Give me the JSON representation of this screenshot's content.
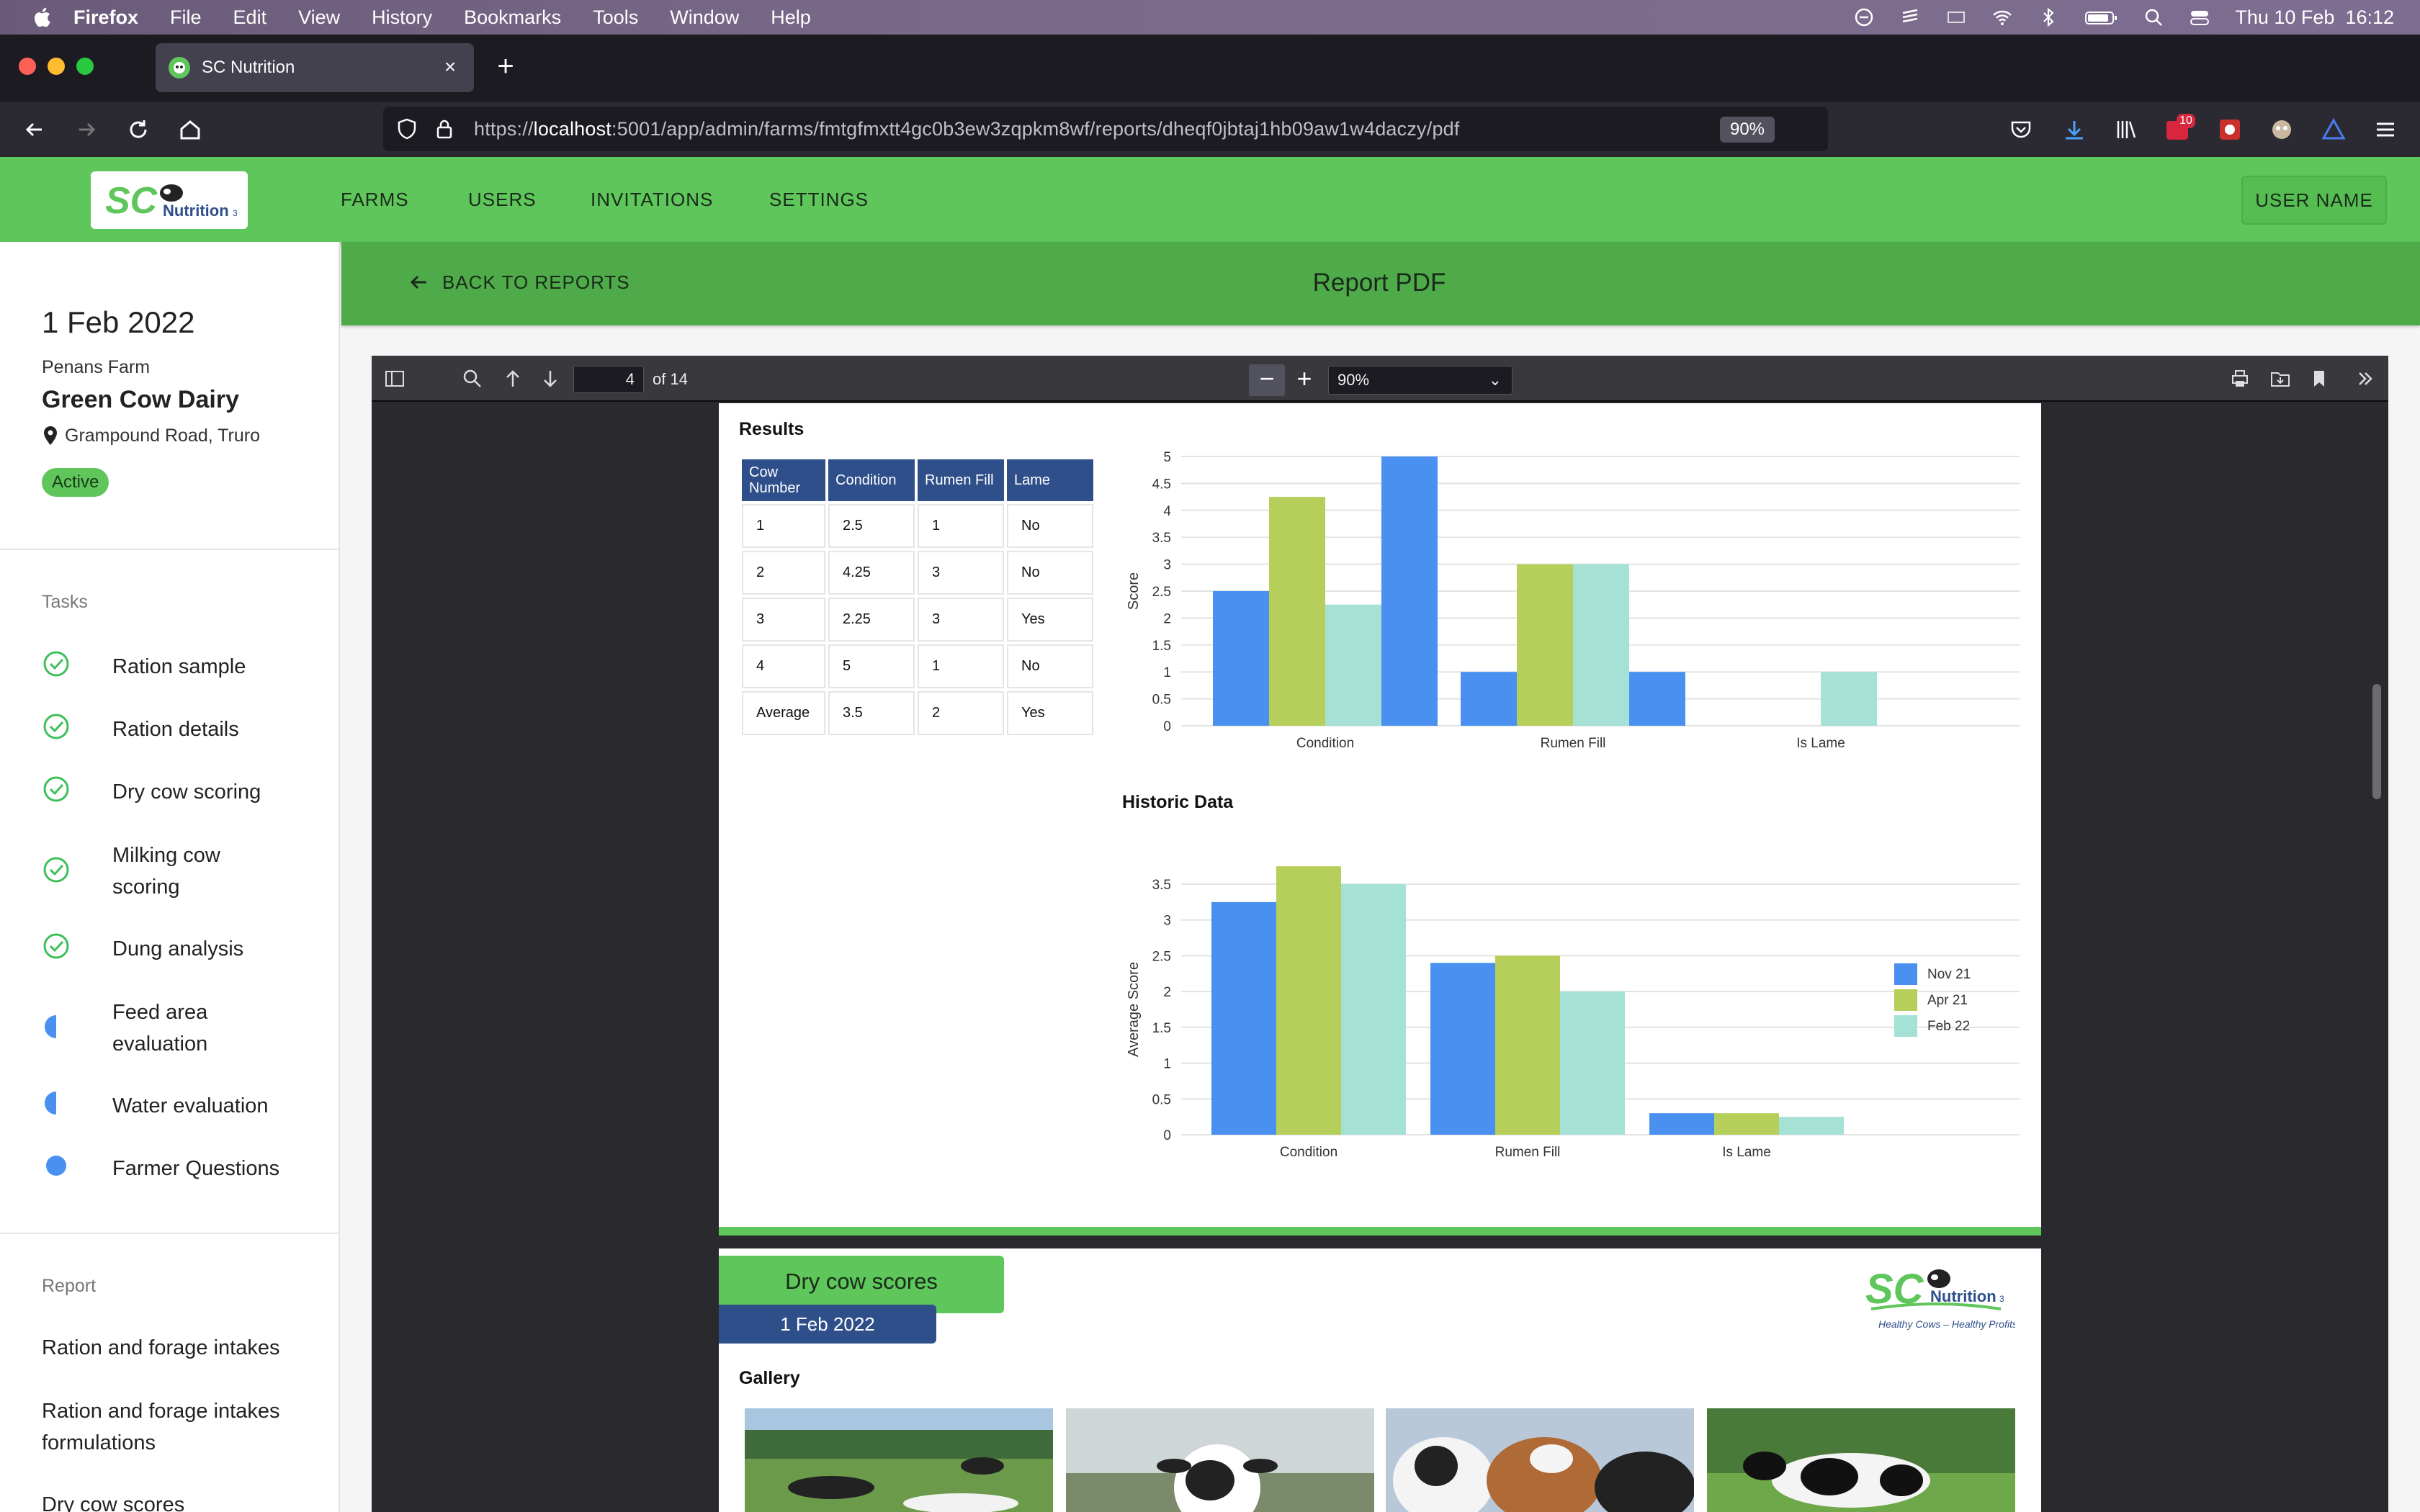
{
  "menubar": {
    "app_name": "Firefox",
    "items": [
      "File",
      "Edit",
      "View",
      "History",
      "Bookmarks",
      "Tools",
      "Window",
      "Help"
    ],
    "clock": "Thu 10 Feb  16:12"
  },
  "browser": {
    "tab_title": "SC Nutrition",
    "url_host": "localhost",
    "url_prefix": "https://",
    "url_rest": ":5001/app/admin/farms/fmtgfmxtt4gc0b3ew3zqpkm8wf/reports/dheqf0jbtaj1hb09aw1w4daczy/pdf",
    "zoom": "90%",
    "downloads_badge": "10"
  },
  "app": {
    "nav": [
      "FARMS",
      "USERS",
      "INVITATIONS",
      "SETTINGS"
    ],
    "user_button": "USER NAME",
    "back_label": "BACK TO REPORTS",
    "page_title": "Report PDF",
    "brand_color": "#5ec65a"
  },
  "sidebar": {
    "date": "1 Feb 2022",
    "farm": "Penans Farm",
    "name": "Green Cow Dairy",
    "location": "Grampound Road, Truro",
    "status": "Active",
    "tasks_heading": "Tasks",
    "tasks": [
      {
        "label": "Ration sample",
        "state": "done"
      },
      {
        "label": "Ration details",
        "state": "done"
      },
      {
        "label": "Dry cow scoring",
        "state": "done"
      },
      {
        "label": "Milking cow scoring",
        "state": "done"
      },
      {
        "label": "Dung analysis",
        "state": "done"
      },
      {
        "label": "Feed area evaluation",
        "state": "partial"
      },
      {
        "label": "Water evaluation",
        "state": "partial"
      },
      {
        "label": "Farmer Questions",
        "state": "todo"
      }
    ],
    "report_heading": "Report",
    "report_items": [
      "Ration and forage intakes",
      "Ration and forage intakes formulations",
      "Dry cow scores"
    ]
  },
  "pdf": {
    "page": "4",
    "of_pages": "of 14",
    "zoom": "90%",
    "results_title": "Results",
    "table": {
      "headers": [
        "Cow Number",
        "Condition",
        "Rumen Fill",
        "Lame"
      ],
      "rows": [
        [
          "1",
          "2.5",
          "1",
          "No"
        ],
        [
          "2",
          "4.25",
          "3",
          "No"
        ],
        [
          "3",
          "2.25",
          "3",
          "Yes"
        ],
        [
          "4",
          "5",
          "1",
          "No"
        ],
        [
          "Average",
          "3.5",
          "2",
          "Yes"
        ]
      ]
    },
    "historic_title": "Historic Data",
    "next_page_title": "Dry cow scores",
    "next_page_date": "1 Feb 2022",
    "gallery_title": "Gallery",
    "logo_tagline": "Healthy Cows – Healthy Profits"
  },
  "chart_data": [
    {
      "type": "bar",
      "categories": [
        "Condition",
        "Rumen Fill",
        "Is Lame"
      ],
      "ylabel": "Score",
      "ylim": [
        0,
        5
      ],
      "yticks": [
        "0",
        "0.5",
        "1",
        "1.5",
        "2",
        "2.5",
        "3",
        "3.5",
        "4",
        "4.5",
        "5"
      ],
      "series": [
        {
          "values": [
            2.5,
            1,
            0
          ],
          "color": "#4a90f0"
        },
        {
          "values": [
            4.25,
            3,
            0
          ],
          "color": "#b5cf5a"
        },
        {
          "values": [
            2.25,
            3,
            1
          ],
          "color": "#a6e1d6"
        },
        {
          "values": [
            5,
            1,
            0
          ],
          "color": "#4a90f0"
        }
      ]
    },
    {
      "type": "bar",
      "categories": [
        "Condition",
        "Rumen Fill",
        "Is Lame"
      ],
      "ylabel": "Average Score",
      "ylim": [
        0,
        3.5
      ],
      "yticks": [
        "0",
        "0.5",
        "1",
        "1.5",
        "2",
        "2.5",
        "3",
        "3.5"
      ],
      "legend": "right",
      "series": [
        {
          "name": "Nov 21",
          "values": [
            3.25,
            2.4,
            0.3
          ],
          "color": "#4a90f0"
        },
        {
          "name": "Apr 21",
          "values": [
            3.75,
            2.5,
            0.3
          ],
          "color": "#b5cf5a"
        },
        {
          "name": "Feb 22",
          "values": [
            3.5,
            2.0,
            0.25
          ],
          "color": "#a6e1d6"
        }
      ]
    }
  ]
}
